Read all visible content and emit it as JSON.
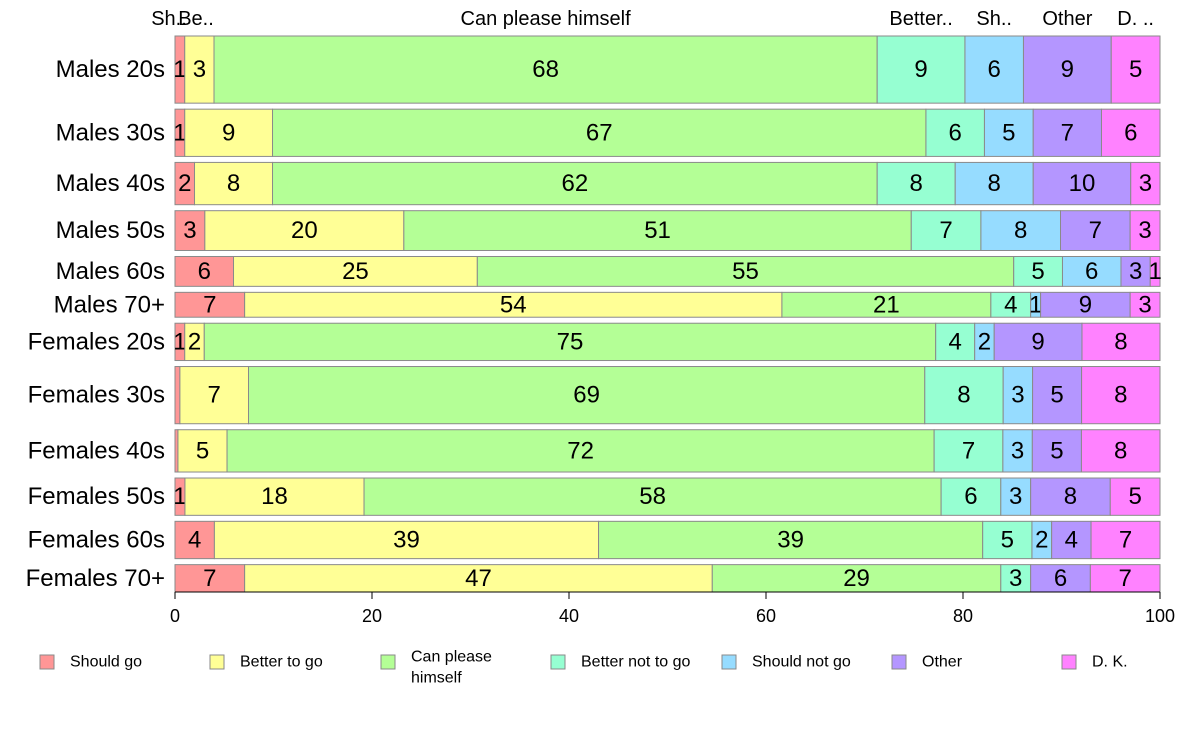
{
  "chart_data": {
    "type": "bar",
    "orientation": "horizontal",
    "stacked": "percent",
    "categories": [
      "Males 20s",
      "Males 30s",
      "Males 40s",
      "Males 50s",
      "Males 60s",
      "Males 70+",
      "Females 20s",
      "Females 30s",
      "Females 40s",
      "Females 50s",
      "Females 60s",
      "Females 70+"
    ],
    "category_weights": [
      1.35,
      0.95,
      0.85,
      0.8,
      0.6,
      0.5,
      0.75,
      1.15,
      0.85,
      0.75,
      0.75,
      0.55
    ],
    "series": [
      {
        "name": "Should go",
        "top_label": "Sh..",
        "values": [
          1,
          1,
          2,
          3,
          6,
          7,
          1,
          0.5,
          0.3,
          1,
          4,
          7
        ],
        "labels": [
          "1",
          "1",
          "2",
          "3",
          "6",
          "7",
          "1",
          "",
          "",
          "1",
          "4",
          "7"
        ]
      },
      {
        "name": "Better to go",
        "top_label": "Be..",
        "values": [
          3,
          9,
          8,
          20,
          25,
          54,
          2,
          7,
          5,
          18,
          39,
          47
        ],
        "labels": [
          "3",
          "9",
          "8",
          "20",
          "25",
          "54",
          "2",
          "7",
          "5",
          "18",
          "39",
          "47"
        ]
      },
      {
        "name": "Can please himself",
        "top_label": "Can please himself",
        "values": [
          68,
          67,
          62,
          51,
          55,
          21,
          75,
          69,
          72,
          58,
          39,
          29
        ],
        "labels": [
          "68",
          "67",
          "62",
          "51",
          "55",
          "21",
          "75",
          "69",
          "72",
          "58",
          "39",
          "29"
        ]
      },
      {
        "name": "Better not to go",
        "top_label": "Better..",
        "values": [
          9,
          6,
          8,
          7,
          5,
          4,
          4,
          8,
          7,
          6,
          5,
          3
        ],
        "labels": [
          "9",
          "6",
          "8",
          "7",
          "5",
          "4",
          "4",
          "8",
          "7",
          "6",
          "5",
          "3"
        ]
      },
      {
        "name": "Should not go",
        "top_label": "Sh..",
        "values": [
          6,
          5,
          8,
          8,
          6,
          1,
          2,
          3,
          3,
          3,
          2,
          0
        ],
        "labels": [
          "6",
          "5",
          "8",
          "8",
          "6",
          "1",
          "2",
          "3",
          "3",
          "3",
          "2",
          ""
        ]
      },
      {
        "name": "Other",
        "top_label": "Other",
        "values": [
          9,
          7,
          10,
          7,
          3,
          9,
          9,
          5,
          5,
          8,
          4,
          6
        ],
        "labels": [
          "9",
          "7",
          "10",
          "7",
          "3",
          "9",
          "9",
          "5",
          "5",
          "8",
          "4",
          "6"
        ]
      },
      {
        "name": "D. K.",
        "top_label": "D. ..",
        "values": [
          5,
          6,
          3,
          3,
          1,
          3,
          8,
          8,
          8,
          5,
          7,
          7
        ],
        "labels": [
          "5",
          "6",
          "3",
          "3",
          "1",
          "3",
          "8",
          "8",
          "8",
          "5",
          "7",
          "7"
        ]
      }
    ],
    "legend": [
      {
        "label": "Should go"
      },
      {
        "label": "Better to go"
      },
      {
        "label": "Can please",
        "label2": "himself"
      },
      {
        "label": "Better not to go"
      },
      {
        "label": "Should not go"
      },
      {
        "label": "Other"
      },
      {
        "label": "D. K."
      }
    ],
    "colors": [
      "#ff9696",
      "#ffff96",
      "#b4ff96",
      "#96ffd2",
      "#96dcff",
      "#b496ff",
      "#ff82ff"
    ],
    "xlim": [
      0,
      100
    ],
    "xticks": [
      "0",
      "20",
      "40",
      "60",
      "80",
      "100"
    ],
    "legend_position": "bottom",
    "grid": false
  }
}
